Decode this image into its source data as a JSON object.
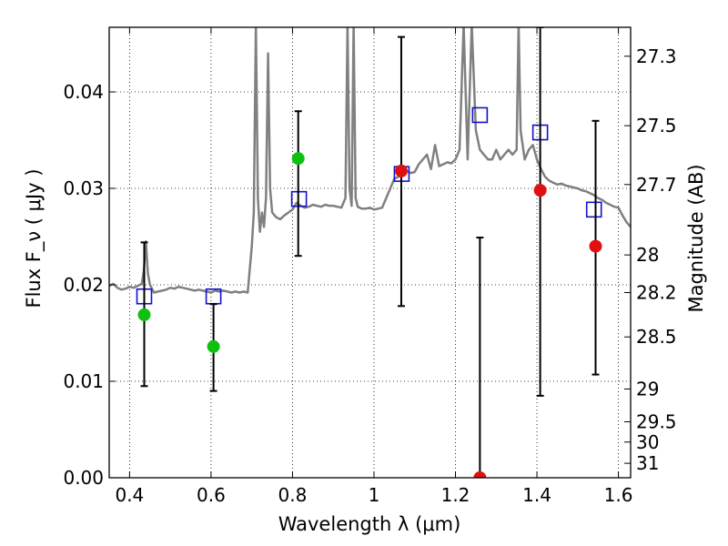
{
  "chart_data": {
    "type": "scatter",
    "xlabel": "Wavelength  λ (μm)",
    "ylabel": "Flux  F_ν ( μJy )",
    "y2label": "Magnitude (AB)",
    "xlim": [
      0.35,
      1.63
    ],
    "ylim": [
      0.0,
      0.0467
    ],
    "grid": true,
    "x_ticks": [
      0.4,
      0.6,
      0.8,
      1.0,
      1.2,
      1.4,
      1.6
    ],
    "x_tick_labels": [
      "0.4",
      "0.6",
      "0.8",
      "1",
      "1.2",
      "1.4",
      "1.6"
    ],
    "y_ticks": [
      0.0,
      0.01,
      0.02,
      0.03,
      0.04
    ],
    "y_tick_labels": [
      "0.00",
      "0.01",
      "0.02",
      "0.03",
      "0.04"
    ],
    "mag_ticks": [
      {
        "label": "27.3",
        "flux": 0.0437
      },
      {
        "label": "27.5",
        "flux": 0.0365
      },
      {
        "label": "27.7",
        "flux": 0.0304
      },
      {
        "label": "28",
        "flux": 0.0231
      },
      {
        "label": "28.2",
        "flux": 0.0192
      },
      {
        "label": "28.5",
        "flux": 0.0146
      },
      {
        "label": "29",
        "flux": 0.0092
      },
      {
        "label": "29.5",
        "flux": 0.0058
      },
      {
        "label": "30",
        "flux": 0.0037
      },
      {
        "label": "31",
        "flux": 0.0015
      }
    ],
    "series": [
      {
        "color": "#808080",
        "kind": "line",
        "x": [
          0.35,
          0.36,
          0.37,
          0.38,
          0.39,
          0.4,
          0.41,
          0.42,
          0.43,
          0.435,
          0.44,
          0.445,
          0.45,
          0.46,
          0.47,
          0.48,
          0.49,
          0.5,
          0.51,
          0.52,
          0.53,
          0.54,
          0.55,
          0.56,
          0.57,
          0.58,
          0.59,
          0.6,
          0.61,
          0.62,
          0.63,
          0.64,
          0.65,
          0.66,
          0.67,
          0.68,
          0.69,
          0.7,
          0.705,
          0.71,
          0.715,
          0.72,
          0.725,
          0.73,
          0.735,
          0.74,
          0.745,
          0.75,
          0.76,
          0.77,
          0.78,
          0.79,
          0.8,
          0.81,
          0.82,
          0.83,
          0.84,
          0.85,
          0.86,
          0.87,
          0.88,
          0.89,
          0.9,
          0.91,
          0.92,
          0.93,
          0.935,
          0.94,
          0.945,
          0.95,
          0.955,
          0.96,
          0.97,
          0.98,
          0.99,
          1.0,
          1.01,
          1.02,
          1.03,
          1.04,
          1.05,
          1.06,
          1.07,
          1.08,
          1.09,
          1.1,
          1.11,
          1.12,
          1.13,
          1.14,
          1.15,
          1.16,
          1.17,
          1.18,
          1.19,
          1.2,
          1.21,
          1.22,
          1.23,
          1.24,
          1.25,
          1.26,
          1.27,
          1.28,
          1.29,
          1.3,
          1.31,
          1.32,
          1.33,
          1.34,
          1.35,
          1.355,
          1.36,
          1.37,
          1.38,
          1.39,
          1.4,
          1.41,
          1.42,
          1.43,
          1.44,
          1.45,
          1.46,
          1.47,
          1.48,
          1.49,
          1.5,
          1.51,
          1.52,
          1.53,
          1.54,
          1.55,
          1.56,
          1.57,
          1.58,
          1.59,
          1.6,
          1.61,
          1.62,
          1.63
        ],
        "y": [
          0.0199,
          0.0201,
          0.0197,
          0.0195,
          0.0196,
          0.0198,
          0.0197,
          0.0199,
          0.0201,
          0.0215,
          0.0245,
          0.0212,
          0.02,
          0.0192,
          0.0193,
          0.0194,
          0.0195,
          0.0197,
          0.0196,
          0.0198,
          0.0197,
          0.0196,
          0.0195,
          0.0194,
          0.0195,
          0.0194,
          0.0193,
          0.0192,
          0.0194,
          0.0193,
          0.0194,
          0.0193,
          0.0192,
          0.0193,
          0.0192,
          0.0193,
          0.0192,
          0.024,
          0.0275,
          0.047,
          0.029,
          0.0255,
          0.0275,
          0.026,
          0.029,
          0.044,
          0.03,
          0.0275,
          0.027,
          0.0268,
          0.0272,
          0.0275,
          0.0278,
          0.0285,
          0.0282,
          0.028,
          0.0281,
          0.0283,
          0.0282,
          0.0281,
          0.0283,
          0.0282,
          0.0282,
          0.0281,
          0.028,
          0.029,
          0.047,
          0.03,
          0.0282,
          0.047,
          0.029,
          0.0281,
          0.0279,
          0.0279,
          0.028,
          0.0278,
          0.0279,
          0.028,
          0.029,
          0.03,
          0.031,
          0.0312,
          0.0315,
          0.0318,
          0.0316,
          0.0317,
          0.0325,
          0.033,
          0.0335,
          0.032,
          0.0345,
          0.0323,
          0.0325,
          0.0327,
          0.0326,
          0.033,
          0.034,
          0.047,
          0.033,
          0.047,
          0.036,
          0.034,
          0.0335,
          0.033,
          0.033,
          0.034,
          0.033,
          0.0335,
          0.034,
          0.0335,
          0.034,
          0.047,
          0.036,
          0.033,
          0.034,
          0.0345,
          0.033,
          0.032,
          0.0312,
          0.0308,
          0.0306,
          0.0304,
          0.0305,
          0.0303,
          0.0302,
          0.0301,
          0.03,
          0.0298,
          0.0297,
          0.0295,
          0.0293,
          0.029,
          0.0288,
          0.0285,
          0.0283,
          0.0281,
          0.028,
          0.0272,
          0.0265,
          0.026
        ]
      },
      {
        "color": "#1010d0",
        "kind": "open-square",
        "x": [
          0.436,
          0.606,
          0.816,
          1.068,
          1.26,
          1.408,
          1.54
        ],
        "y": [
          0.0188,
          0.0188,
          0.0289,
          0.0315,
          0.0376,
          0.0358,
          0.0278
        ]
      },
      {
        "color": "#10c010",
        "kind": "filled-circle",
        "x": [
          0.436,
          0.606,
          0.814
        ],
        "y": [
          0.0169,
          0.0136,
          0.0331
        ],
        "yerr_low": [
          0.0095,
          0.009,
          0.023
        ],
        "yerr_high": [
          0.0244,
          0.018,
          0.038
        ]
      },
      {
        "color": "#e01010",
        "kind": "filled-circle",
        "x": [
          1.067,
          1.26,
          1.408,
          1.544
        ],
        "y": [
          0.0318,
          0.0,
          0.0298,
          0.024
        ],
        "yerr_low": [
          0.0178,
          0.0,
          0.0085,
          0.0107
        ],
        "yerr_high": [
          0.0457,
          0.0249,
          0.0467,
          0.037
        ]
      }
    ]
  }
}
